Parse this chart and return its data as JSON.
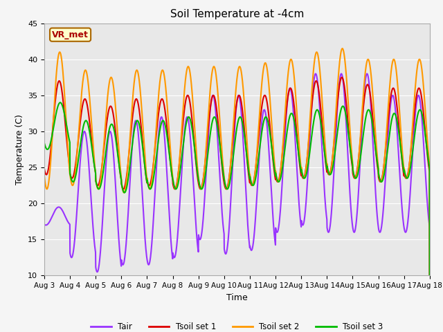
{
  "title": "Soil Temperature at -4cm",
  "xlabel": "Time",
  "ylabel": "Temperature (C)",
  "ylim": [
    10,
    45
  ],
  "colors": {
    "Tair": "#9933ff",
    "Tsoil_set1": "#dd0000",
    "Tsoil_set2": "#ff9900",
    "Tsoil_set3": "#00bb00"
  },
  "legend_labels": [
    "Tair",
    "Tsoil set 1",
    "Tsoil set 2",
    "Tsoil set 3"
  ],
  "annotation_text": "VR_met",
  "annotation_bg": "#ffffcc",
  "annotation_edge": "#aa6600",
  "annotation_font_color": "#aa0000",
  "plot_bg": "#e8e8e8",
  "fig_bg": "#f5f5f5",
  "num_days": 15,
  "start_day": 3,
  "points_per_day": 144,
  "grid_color": "#ffffff",
  "linewidth": 1.5
}
